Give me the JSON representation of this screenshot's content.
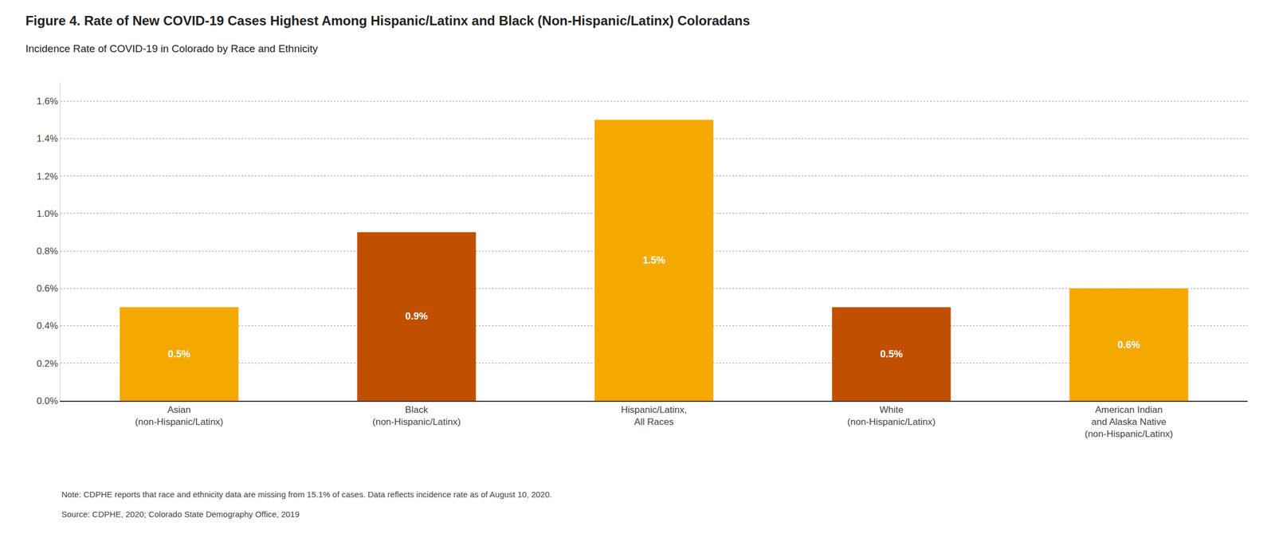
{
  "chart_data": {
    "type": "bar",
    "title": "Figure 4. Rate of New COVID-19 Cases Highest Among Hispanic/Latinx and Black (Non-Hispanic/Latinx) Coloradans",
    "subtitle": "Incidence Rate of COVID-19 in Colorado by Race and Ethnicity",
    "categories": [
      "Asian\n(non-Hispanic/Latinx)",
      "Black\n(non-Hispanic/Latinx)",
      "Hispanic/Latinx,\nAll Races",
      "White\n(non-Hispanic/Latinx)",
      "American Indian\nand Alaska Native\n(non-Hispanic/Latinx)"
    ],
    "values": [
      0.005,
      0.009,
      0.015,
      0.005,
      0.006
    ],
    "value_labels": [
      "0.5%",
      "0.9%",
      "1.5%",
      "0.5%",
      "0.6%"
    ],
    "data_labels": true,
    "colors": [
      "#F5A800",
      "#C05000",
      "#F5A800",
      "#C05000",
      "#F5A800"
    ],
    "ylim": [
      0,
      0.017
    ],
    "yticks": [
      {
        "value": 0.0,
        "label": "0.0%"
      },
      {
        "value": 0.002,
        "label": "0.2%"
      },
      {
        "value": 0.004,
        "label": "0.4%"
      },
      {
        "value": 0.006,
        "label": "0.6%"
      },
      {
        "value": 0.008,
        "label": "0.8%"
      },
      {
        "value": 0.01,
        "label": "1.0%"
      },
      {
        "value": 0.012,
        "label": "1.2%"
      },
      {
        "value": 0.014,
        "label": "1.4%"
      },
      {
        "value": 0.016,
        "label": "1.6%"
      }
    ],
    "grid": true,
    "annotations": [
      "Note: CDPHE reports that race and ethnicity data are missing from 15.1% of cases. Data reflects incidence rate as of August 10, 2020.",
      "Source: CDPHE, 2020; Colorado State Demography Office, 2019"
    ]
  }
}
